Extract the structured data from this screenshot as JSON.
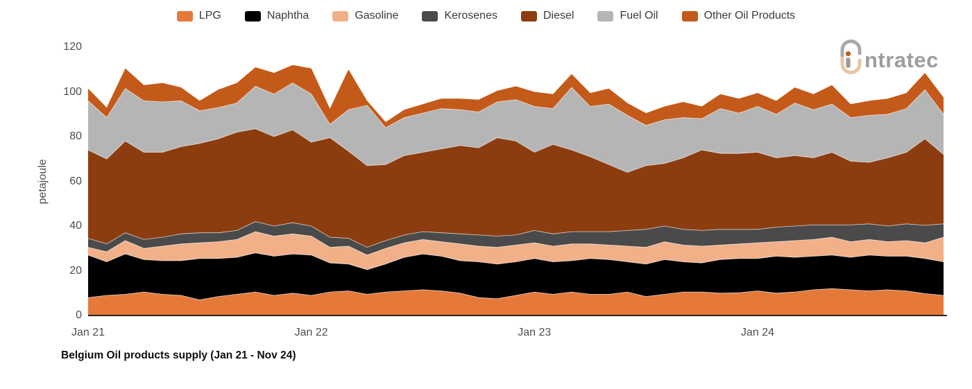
{
  "legend": {
    "items": [
      {
        "label": "LPG",
        "color": "#E4793A"
      },
      {
        "label": "Naphtha",
        "color": "#000000"
      },
      {
        "label": "Gasoline",
        "color": "#F2B088"
      },
      {
        "label": "Kerosenes",
        "color": "#4A4A4A"
      },
      {
        "label": "Diesel",
        "color": "#8C3D10"
      },
      {
        "label": "Fuel Oil",
        "color": "#B5B5B5"
      },
      {
        "label": "Other Oil Products",
        "color": "#C45A1A"
      }
    ]
  },
  "y_axis": {
    "title": "petajoule",
    "ticks": [
      0,
      20,
      40,
      60,
      80,
      100,
      120
    ],
    "max": 120
  },
  "x_axis": {
    "ticks": [
      {
        "label": "Jan 21",
        "month_index": 0
      },
      {
        "label": "Jan 22",
        "month_index": 12
      },
      {
        "label": "Jan 23",
        "month_index": 24
      },
      {
        "label": "Jan 24",
        "month_index": 36
      }
    ]
  },
  "caption": "Belgium Oil products supply (Jan 21 - Nov 24)",
  "logo": {
    "brand": "intratec",
    "wordmark_tail": "ntratec"
  },
  "chart_data": {
    "type": "area",
    "stacked": true,
    "title": "Belgium Oil products supply (Jan 21 - Nov 24)",
    "xlabel": "",
    "ylabel": "petajoule",
    "ylim": [
      0,
      120
    ],
    "grid": false,
    "legend_position": "top-center",
    "x": [
      "Jan 21",
      "Feb 21",
      "Mar 21",
      "Apr 21",
      "May 21",
      "Jun 21",
      "Jul 21",
      "Aug 21",
      "Sep 21",
      "Oct 21",
      "Nov 21",
      "Dec 21",
      "Jan 22",
      "Feb 22",
      "Mar 22",
      "Apr 22",
      "May 22",
      "Jun 22",
      "Jul 22",
      "Aug 22",
      "Sep 22",
      "Oct 22",
      "Nov 22",
      "Dec 22",
      "Jan 23",
      "Feb 23",
      "Mar 23",
      "Apr 23",
      "May 23",
      "Jun 23",
      "Jul 23",
      "Aug 23",
      "Sep 23",
      "Oct 23",
      "Nov 23",
      "Dec 23",
      "Jan 24",
      "Feb 24",
      "Mar 24",
      "Apr 24",
      "May 24",
      "Jun 24",
      "Jul 24",
      "Aug 24",
      "Sep 24",
      "Oct 24",
      "Nov 24"
    ],
    "series": [
      {
        "name": "LPG",
        "color": "#E4793A",
        "values": [
          8.0,
          9.0,
          9.5,
          10.5,
          9.5,
          9.0,
          7.0,
          8.5,
          9.5,
          10.5,
          9.0,
          10.0,
          9.0,
          10.5,
          11.0,
          9.5,
          10.5,
          11.0,
          11.5,
          11.0,
          10.0,
          8.0,
          7.5,
          9.0,
          10.5,
          9.5,
          10.5,
          9.5,
          9.5,
          10.5,
          8.5,
          9.5,
          10.5,
          10.5,
          10.0,
          10.2,
          11.0,
          10.0,
          10.5,
          11.5,
          12.0,
          11.5,
          11.0,
          11.5,
          11.0,
          9.8,
          9.0
        ]
      },
      {
        "name": "Naphtha",
        "color": "#000000",
        "values": [
          19.0,
          15.0,
          18.0,
          14.5,
          15.0,
          15.5,
          18.5,
          17.0,
          16.5,
          17.5,
          17.5,
          17.5,
          18.0,
          13.0,
          12.0,
          11.0,
          12.5,
          15.0,
          16.0,
          15.5,
          14.5,
          16.0,
          15.5,
          15.0,
          15.0,
          14.5,
          14.0,
          16.0,
          15.5,
          13.5,
          14.5,
          15.5,
          13.5,
          13.0,
          15.0,
          15.3,
          14.5,
          16.5,
          15.5,
          15.0,
          15.0,
          14.5,
          16.0,
          15.0,
          15.5,
          15.7,
          15.0
        ]
      },
      {
        "name": "Gasoline",
        "color": "#F2B088",
        "values": [
          3.5,
          4.5,
          6.0,
          5.0,
          6.5,
          7.5,
          7.0,
          7.5,
          8.0,
          9.5,
          9.0,
          9.0,
          8.5,
          7.0,
          8.0,
          6.5,
          7.0,
          6.5,
          6.5,
          6.5,
          7.5,
          7.0,
          7.5,
          7.5,
          7.0,
          7.0,
          7.5,
          6.5,
          6.5,
          7.0,
          7.5,
          8.0,
          7.5,
          7.5,
          6.5,
          6.5,
          7.0,
          6.5,
          7.5,
          7.5,
          8.0,
          7.0,
          7.0,
          6.5,
          7.0,
          7.0,
          11.0
        ]
      },
      {
        "name": "Kerosenes",
        "color": "#4A4A4A",
        "values": [
          4.0,
          3.5,
          3.5,
          4.0,
          4.0,
          4.5,
          4.5,
          4.0,
          4.0,
          4.5,
          4.5,
          5.0,
          4.5,
          4.5,
          3.5,
          3.5,
          3.5,
          3.5,
          3.5,
          4.0,
          4.5,
          5.0,
          5.0,
          4.5,
          5.5,
          5.5,
          5.5,
          5.5,
          6.0,
          7.0,
          8.0,
          7.0,
          7.0,
          7.0,
          7.0,
          6.5,
          6.0,
          6.5,
          6.5,
          6.5,
          5.5,
          7.5,
          7.0,
          7.0,
          7.5,
          7.8,
          6.0
        ]
      },
      {
        "name": "Diesel",
        "color": "#8C3D10",
        "values": [
          39.5,
          38.0,
          41.0,
          39.0,
          38.0,
          39.0,
          40.0,
          42.0,
          44.0,
          41.5,
          40.0,
          41.5,
          37.5,
          44.5,
          39.0,
          36.5,
          34.0,
          35.5,
          35.5,
          37.5,
          39.5,
          39.0,
          44.0,
          42.0,
          35.0,
          40.0,
          36.5,
          33.5,
          30.0,
          26.0,
          28.5,
          28.0,
          32.0,
          36.0,
          34.0,
          34.0,
          34.5,
          31.0,
          31.5,
          30.0,
          32.5,
          28.5,
          27.5,
          30.5,
          32.0,
          38.7,
          31.0
        ]
      },
      {
        "name": "Fuel Oil",
        "color": "#B5B5B5",
        "values": [
          22.0,
          18.5,
          23.5,
          23.0,
          22.5,
          20.5,
          14.5,
          14.0,
          13.0,
          19.0,
          19.0,
          21.0,
          21.5,
          6.0,
          18.5,
          27.0,
          16.5,
          17.0,
          17.5,
          18.0,
          16.0,
          16.0,
          16.0,
          18.5,
          20.5,
          16.0,
          28.0,
          22.5,
          27.0,
          25.5,
          18.0,
          19.5,
          18.0,
          14.0,
          20.0,
          18.0,
          20.5,
          19.5,
          23.5,
          21.5,
          21.5,
          19.5,
          21.0,
          19.5,
          19.5,
          22.0,
          18.0
        ]
      },
      {
        "name": "Other Oil Products",
        "color": "#C45A1A",
        "values": [
          5.5,
          4.5,
          9.0,
          7.0,
          8.5,
          6.0,
          4.5,
          8.0,
          9.0,
          8.5,
          9.5,
          8.0,
          11.5,
          7.0,
          18.0,
          2.0,
          2.5,
          3.5,
          4.0,
          4.5,
          5.0,
          5.5,
          5.0,
          6.0,
          6.5,
          6.5,
          6.0,
          6.0,
          7.0,
          5.5,
          5.5,
          6.0,
          7.0,
          5.5,
          6.5,
          6.5,
          6.0,
          6.0,
          7.0,
          7.0,
          8.5,
          6.0,
          6.5,
          7.0,
          7.0,
          7.5,
          7.5
        ]
      }
    ]
  }
}
